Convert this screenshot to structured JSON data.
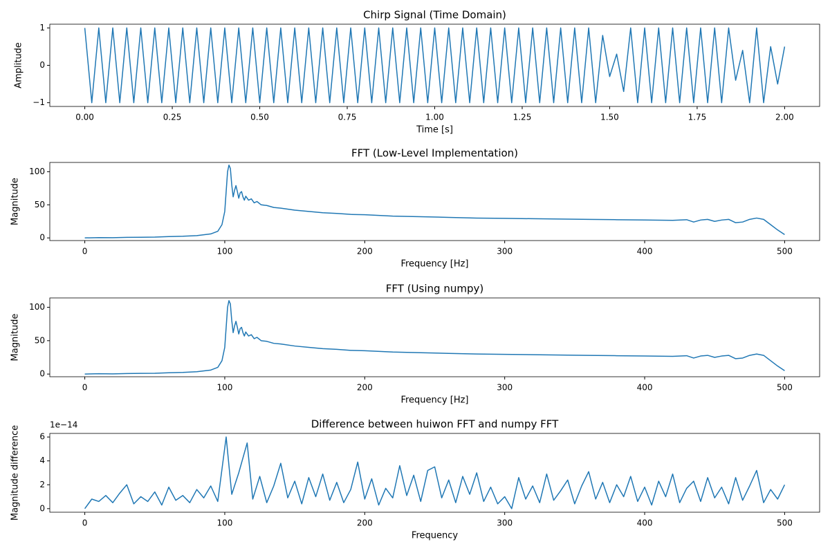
{
  "chart_data": [
    {
      "type": "line",
      "title": "Chirp Signal (Time Domain)",
      "xlabel": "Time [s]",
      "ylabel": "Amplitude",
      "color": "#1f77b4",
      "x": [
        0,
        0.02,
        0.04,
        0.06,
        0.08,
        0.1,
        0.12,
        0.14,
        0.16,
        0.18,
        0.2,
        0.22,
        0.24,
        0.26,
        0.28,
        0.3,
        0.32,
        0.34,
        0.36,
        0.38,
        0.4,
        0.42,
        0.44,
        0.46,
        0.48,
        0.5,
        0.52,
        0.54,
        0.56,
        0.58,
        0.6,
        0.62,
        0.64,
        0.66,
        0.68,
        0.7,
        0.72,
        0.74,
        0.76,
        0.78,
        0.8,
        0.82,
        0.84,
        0.86,
        0.88,
        0.9,
        0.92,
        0.94,
        0.96,
        0.98,
        1,
        1.02,
        1.04,
        1.06,
        1.08,
        1.1,
        1.12,
        1.14,
        1.16,
        1.18,
        1.2,
        1.22,
        1.24,
        1.26,
        1.28,
        1.3,
        1.32,
        1.34,
        1.36,
        1.38,
        1.4,
        1.42,
        1.44,
        1.46,
        1.48,
        1.5,
        1.52,
        1.54,
        1.56,
        1.58,
        1.6,
        1.62,
        1.64,
        1.66,
        1.68,
        1.7,
        1.72,
        1.74,
        1.76,
        1.78,
        1.8,
        1.82,
        1.84,
        1.86,
        1.88,
        1.9,
        1.92,
        1.94,
        1.96,
        1.98,
        2
      ],
      "values": [
        1,
        -1,
        1,
        -1,
        1,
        -1,
        1,
        -1,
        1,
        -1,
        1,
        -1,
        1,
        -1,
        1,
        -1,
        1,
        -1,
        1,
        -1,
        1,
        -1,
        1,
        -1,
        1,
        -1,
        1,
        -1,
        1,
        -1,
        1,
        -1,
        1,
        -1,
        1,
        -1,
        1,
        -1,
        1,
        -1,
        1,
        -1,
        1,
        -1,
        1,
        -1,
        1,
        -1,
        1,
        -1,
        1,
        -1,
        1,
        -1,
        1,
        -1,
        1,
        -1,
        1,
        -1,
        1,
        -1,
        1,
        -1,
        1,
        -1,
        1,
        -1,
        1,
        -1,
        1,
        -1,
        1,
        -1,
        0.8,
        -0.3,
        0.3,
        -0.7,
        1,
        -1,
        1,
        -1,
        1,
        -1,
        1,
        -1,
        1,
        -1,
        1,
        -1,
        1,
        -1,
        1,
        -0.4,
        0.4,
        -1,
        1,
        -1,
        0.5,
        -0.5,
        0.5
      ],
      "xlim": [
        -0.1,
        2.1
      ],
      "ylim": [
        -1.1,
        1.1
      ],
      "xticks": [
        {
          "value": 0,
          "label": "0.00"
        },
        {
          "value": 0.25,
          "label": "0.25"
        },
        {
          "value": 0.5,
          "label": "0.50"
        },
        {
          "value": 0.75,
          "label": "0.75"
        },
        {
          "value": 1,
          "label": "1.00"
        },
        {
          "value": 1.25,
          "label": "1.25"
        },
        {
          "value": 1.5,
          "label": "1.50"
        },
        {
          "value": 1.75,
          "label": "1.75"
        },
        {
          "value": 2,
          "label": "2.00"
        }
      ],
      "yticks": [
        {
          "value": -1,
          "label": "−1"
        },
        0,
        1
      ]
    },
    {
      "type": "line",
      "title": "FFT (Low-Level Implementation)",
      "xlabel": "Frequency [Hz]",
      "ylabel": "Magnitude",
      "color": "#1f77b4",
      "x": [
        0,
        10,
        20,
        30,
        40,
        50,
        60,
        70,
        80,
        90,
        95,
        98,
        100,
        102,
        103,
        104,
        105,
        106,
        107,
        108,
        109,
        110,
        111,
        112,
        113,
        114,
        115,
        117,
        119,
        121,
        123,
        126,
        130,
        135,
        140,
        150,
        160,
        170,
        180,
        190,
        200,
        220,
        240,
        260,
        280,
        300,
        320,
        340,
        360,
        380,
        400,
        420,
        430,
        435,
        440,
        445,
        450,
        455,
        460,
        465,
        470,
        475,
        480,
        485,
        490,
        495,
        500
      ],
      "values": [
        0,
        0.5,
        0.3,
        0.8,
        1,
        1.2,
        2,
        2.5,
        3.5,
        6,
        10,
        20,
        40,
        100,
        110,
        105,
        80,
        62,
        72,
        79,
        70,
        60,
        68,
        70,
        62,
        57,
        63,
        57,
        59,
        53,
        55,
        50,
        49,
        46,
        45,
        42,
        40,
        38,
        37,
        35.5,
        35,
        33,
        32,
        31,
        30,
        29.5,
        29,
        28.5,
        28,
        27.5,
        27,
        26.5,
        27.5,
        24,
        27,
        28,
        25,
        27,
        28,
        23,
        24,
        28,
        30,
        28,
        20,
        12,
        5
      ],
      "xlim": [
        -25,
        525
      ],
      "ylim": [
        -4,
        114
      ],
      "xticks": [
        0,
        100,
        200,
        300,
        400,
        500
      ],
      "yticks": [
        0,
        50,
        100
      ]
    },
    {
      "type": "line",
      "title": "FFT (Using numpy)",
      "xlabel": "Frequency [Hz]",
      "ylabel": "Magnitude",
      "color": "#1f77b4",
      "x": [
        0,
        10,
        20,
        30,
        40,
        50,
        60,
        70,
        80,
        90,
        95,
        98,
        100,
        102,
        103,
        104,
        105,
        106,
        107,
        108,
        109,
        110,
        111,
        112,
        113,
        114,
        115,
        117,
        119,
        121,
        123,
        126,
        130,
        135,
        140,
        150,
        160,
        170,
        180,
        190,
        200,
        220,
        240,
        260,
        280,
        300,
        320,
        340,
        360,
        380,
        400,
        420,
        430,
        435,
        440,
        445,
        450,
        455,
        460,
        465,
        470,
        475,
        480,
        485,
        490,
        495,
        500
      ],
      "values": [
        0,
        0.5,
        0.3,
        0.8,
        1,
        1.2,
        2,
        2.5,
        3.5,
        6,
        10,
        20,
        40,
        100,
        110,
        105,
        80,
        62,
        72,
        79,
        70,
        60,
        68,
        70,
        62,
        57,
        63,
        57,
        59,
        53,
        55,
        50,
        49,
        46,
        45,
        42,
        40,
        38,
        37,
        35.5,
        35,
        33,
        32,
        31,
        30,
        29.5,
        29,
        28.5,
        28,
        27.5,
        27,
        26.5,
        27.5,
        24,
        27,
        28,
        25,
        27,
        28,
        23,
        24,
        28,
        30,
        28,
        20,
        12,
        5
      ],
      "xlim": [
        -25,
        525
      ],
      "ylim": [
        -4,
        114
      ],
      "xticks": [
        0,
        100,
        200,
        300,
        400,
        500
      ],
      "yticks": [
        0,
        50,
        100
      ]
    },
    {
      "type": "line",
      "title": "Difference between huiwon FFT and numpy FFT",
      "xlabel": "Frequency",
      "ylabel": "Magnitude difference",
      "y_offset_label": "1e−14",
      "color": "#1f77b4",
      "x": [
        0,
        5,
        10,
        15,
        20,
        25,
        30,
        35,
        40,
        45,
        50,
        55,
        60,
        65,
        70,
        75,
        80,
        85,
        90,
        95,
        101,
        105,
        110,
        116,
        120,
        125,
        130,
        135,
        140,
        145,
        150,
        155,
        160,
        165,
        170,
        175,
        180,
        185,
        190,
        195,
        200,
        205,
        210,
        215,
        220,
        225,
        230,
        235,
        240,
        245,
        250,
        255,
        260,
        265,
        270,
        275,
        280,
        285,
        290,
        295,
        300,
        305,
        310,
        315,
        320,
        325,
        330,
        335,
        340,
        345,
        350,
        355,
        360,
        365,
        370,
        375,
        380,
        385,
        390,
        395,
        400,
        405,
        410,
        415,
        420,
        425,
        430,
        435,
        440,
        445,
        450,
        455,
        460,
        465,
        470,
        475,
        480,
        485,
        490,
        495,
        500
      ],
      "values": [
        0,
        0.8,
        0.6,
        1.1,
        0.5,
        1.3,
        2.0,
        0.4,
        1.0,
        0.6,
        1.4,
        0.3,
        1.8,
        0.7,
        1.1,
        0.5,
        1.6,
        0.9,
        1.9,
        0.6,
        6.0,
        1.2,
        3.0,
        5.5,
        0.8,
        2.7,
        0.5,
        1.9,
        3.8,
        0.9,
        2.3,
        0.4,
        2.6,
        1.0,
        2.9,
        0.7,
        2.2,
        0.5,
        1.6,
        3.9,
        0.8,
        2.5,
        0.3,
        1.7,
        0.9,
        3.6,
        1.1,
        2.8,
        0.6,
        3.2,
        3.5,
        0.9,
        2.4,
        0.5,
        2.7,
        1.2,
        3.0,
        0.6,
        1.8,
        0.4,
        1.0,
        0,
        2.6,
        0.8,
        1.9,
        0.5,
        2.9,
        0.7,
        1.5,
        2.4,
        0.4,
        1.9,
        3.1,
        0.8,
        2.2,
        0.5,
        2.0,
        1.0,
        2.7,
        0.6,
        1.8,
        0.3,
        2.3,
        1.0,
        2.9,
        0.5,
        1.7,
        2.3,
        0.6,
        2.6,
        0.9,
        1.8,
        0.4,
        2.6,
        0.7,
        1.9,
        3.2,
        0.5,
        1.6,
        0.8,
        2.0
      ],
      "xlim": [
        -25,
        525
      ],
      "ylim": [
        -0.3,
        6.3
      ],
      "xticks": [
        0,
        100,
        200,
        300,
        400,
        500
      ],
      "yticks": [
        0,
        2,
        4,
        6
      ]
    }
  ]
}
